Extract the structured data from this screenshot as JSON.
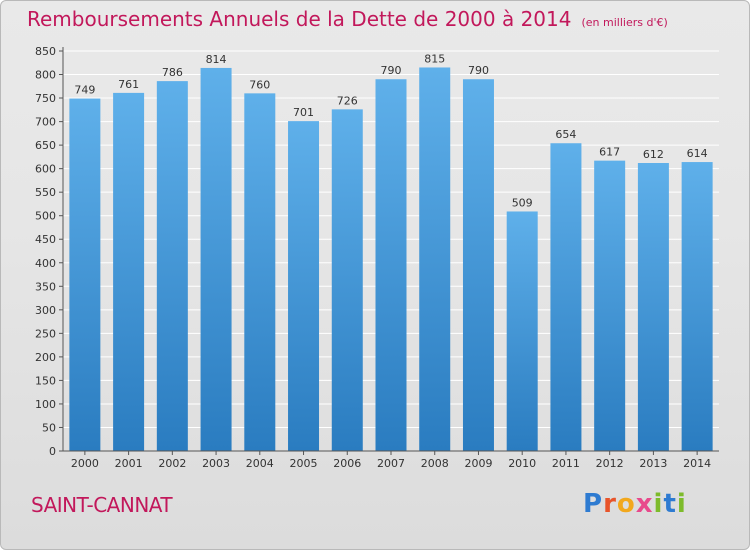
{
  "header": {
    "title": "Remboursements Annuels de la Dette de 2000 à 2014",
    "subtitle": "(en milliers d'€)"
  },
  "footer": {
    "commune": "SAINT-CANNAT",
    "brand": "Proxiti"
  },
  "colors": {
    "accent": "#c2185b",
    "bar_top": "#5fb0ea",
    "bar_bottom": "#2a7cc0",
    "grid": "#ffffff",
    "axis": "#555555"
  },
  "chart_data": {
    "type": "bar",
    "title": "Remboursements Annuels de la Dette de 2000 à 2014",
    "subtitle": "(en milliers d'€)",
    "xlabel": "",
    "ylabel": "",
    "ylim": [
      0,
      850
    ],
    "ytick_step": 50,
    "grid": true,
    "categories": [
      "2000",
      "2001",
      "2002",
      "2003",
      "2004",
      "2005",
      "2006",
      "2007",
      "2008",
      "2009",
      "2010",
      "2011",
      "2012",
      "2013",
      "2014"
    ],
    "values": [
      749,
      761,
      786,
      814,
      760,
      701,
      726,
      790,
      815,
      790,
      509,
      654,
      617,
      612,
      614
    ]
  }
}
